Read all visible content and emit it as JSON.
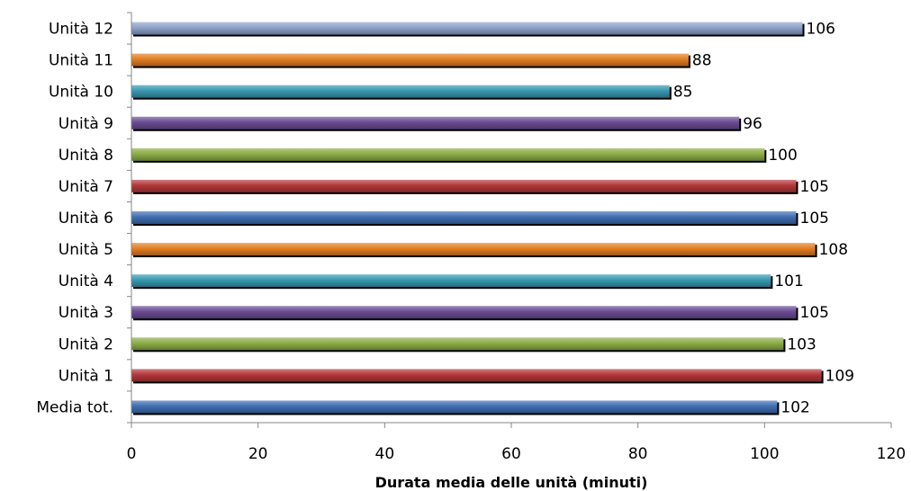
{
  "chart_data": {
    "type": "bar",
    "orientation": "horizontal",
    "title": "",
    "xlabel": "Durata media delle unità (minuti)",
    "ylabel": "",
    "xlim": [
      0,
      120
    ],
    "xticks": [
      0,
      20,
      40,
      60,
      80,
      100,
      120
    ],
    "grid": false,
    "legend": "none",
    "categories": [
      "Media tot.",
      "Unità 1",
      "Unità 2",
      "Unità 3",
      "Unità 4",
      "Unità 5",
      "Unità 6",
      "Unità 7",
      "Unità 8",
      "Unità 9",
      "Unità 10",
      "Unità 11",
      "Unità 12"
    ],
    "values": [
      102,
      109,
      103,
      105,
      101,
      108,
      105,
      105,
      100,
      96,
      85,
      88,
      106
    ],
    "colors": [
      "#3f6eb2",
      "#b3373a",
      "#8cad45",
      "#6a4b93",
      "#3698b0",
      "#e27d22",
      "#3f6eb2",
      "#b3373a",
      "#8cad45",
      "#6a4b93",
      "#3698b0",
      "#e27d22",
      "#8ea2c9"
    ]
  }
}
